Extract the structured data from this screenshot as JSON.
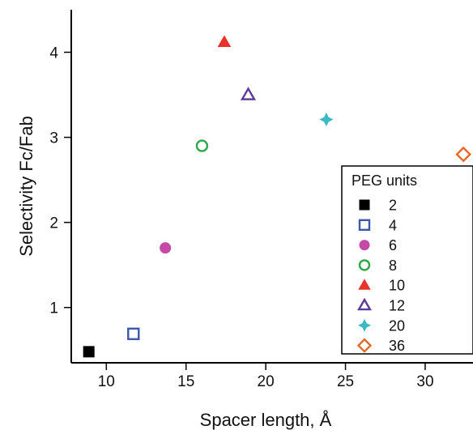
{
  "chart_data": {
    "type": "scatter",
    "title": "",
    "xlabel": "Spacer length, Å",
    "ylabel": "Selectivity Fc/Fab",
    "xlim": [
      7.8,
      33
    ],
    "ylim": [
      0.35,
      4.5
    ],
    "xticks": [
      10,
      15,
      20,
      25,
      30
    ],
    "yticks": [
      1,
      2,
      3,
      4
    ],
    "grid": false,
    "legend": {
      "title": "PEG units",
      "placement": "bottom-right"
    },
    "series": [
      {
        "name": "2",
        "marker": "square-filled",
        "color": "#000000",
        "x": [
          8.9
        ],
        "y": [
          0.48
        ]
      },
      {
        "name": "4",
        "marker": "square-open",
        "color": "#3a5aa8",
        "x": [
          11.7
        ],
        "y": [
          0.69
        ]
      },
      {
        "name": "6",
        "marker": "circle-filled",
        "color": "#c44aa6",
        "x": [
          13.7
        ],
        "y": [
          1.7
        ]
      },
      {
        "name": "8",
        "marker": "circle-open",
        "color": "#2aa84a",
        "x": [
          16.0
        ],
        "y": [
          2.9
        ]
      },
      {
        "name": "10",
        "marker": "triangle-filled",
        "color": "#e8322a",
        "x": [
          17.4
        ],
        "y": [
          4.12
        ]
      },
      {
        "name": "12",
        "marker": "triangle-open",
        "color": "#5a3a9a",
        "x": [
          18.9
        ],
        "y": [
          3.5
        ]
      },
      {
        "name": "20",
        "marker": "star4-filled",
        "color": "#3ab8c4",
        "x": [
          23.8
        ],
        "y": [
          3.21
        ]
      },
      {
        "name": "36",
        "marker": "diamond-open",
        "color": "#e8682a",
        "x": [
          32.4
        ],
        "y": [
          2.8
        ]
      }
    ]
  }
}
